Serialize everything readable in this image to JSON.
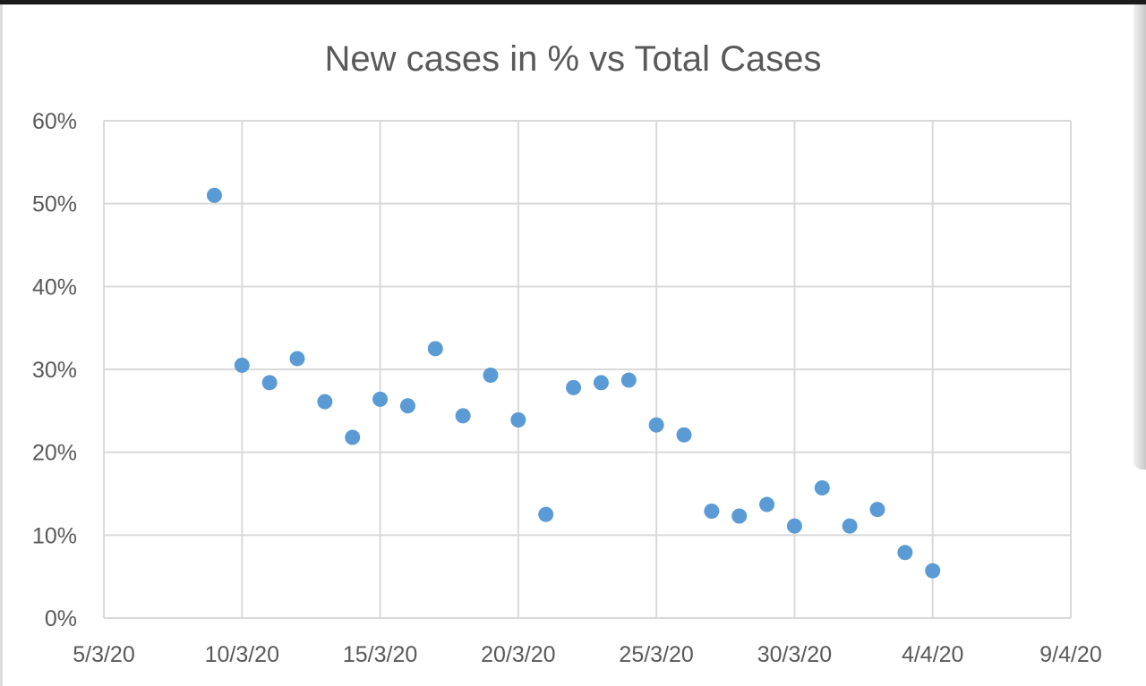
{
  "chart_data": {
    "type": "scatter",
    "title": "New cases in % vs Total Cases",
    "xlabel": "",
    "ylabel": "",
    "x_ticks": [
      "5/3/20",
      "10/3/20",
      "15/3/20",
      "20/3/20",
      "25/3/20",
      "30/3/20",
      "4/4/20",
      "9/4/20"
    ],
    "y_ticks": [
      "0%",
      "10%",
      "20%",
      "30%",
      "40%",
      "50%",
      "60%"
    ],
    "xlim": [
      "5/3/20",
      "9/4/20"
    ],
    "ylim": [
      0,
      60
    ],
    "grid": true,
    "legend": "none",
    "marker_color": "#5b9bd5",
    "series": [
      {
        "points": [
          {
            "x": "9/3/20",
            "y": 51.0
          },
          {
            "x": "10/3/20",
            "y": 30.5
          },
          {
            "x": "11/3/20",
            "y": 28.4
          },
          {
            "x": "12/3/20",
            "y": 31.3
          },
          {
            "x": "13/3/20",
            "y": 26.1
          },
          {
            "x": "14/3/20",
            "y": 21.8
          },
          {
            "x": "15/3/20",
            "y": 26.4
          },
          {
            "x": "16/3/20",
            "y": 25.6
          },
          {
            "x": "17/3/20",
            "y": 32.5
          },
          {
            "x": "18/3/20",
            "y": 24.4
          },
          {
            "x": "19/3/20",
            "y": 29.3
          },
          {
            "x": "20/3/20",
            "y": 23.9
          },
          {
            "x": "21/3/20",
            "y": 12.5
          },
          {
            "x": "22/3/20",
            "y": 27.8
          },
          {
            "x": "23/3/20",
            "y": 28.4
          },
          {
            "x": "24/3/20",
            "y": 28.7
          },
          {
            "x": "25/3/20",
            "y": 23.3
          },
          {
            "x": "26/3/20",
            "y": 22.1
          },
          {
            "x": "27/3/20",
            "y": 12.9
          },
          {
            "x": "28/3/20",
            "y": 12.3
          },
          {
            "x": "29/3/20",
            "y": 13.7
          },
          {
            "x": "30/3/20",
            "y": 11.1
          },
          {
            "x": "31/3/20",
            "y": 15.7
          },
          {
            "x": "1/4/20",
            "y": 11.1
          },
          {
            "x": "2/4/20",
            "y": 13.1
          },
          {
            "x": "3/4/20",
            "y": 7.9
          },
          {
            "x": "4/4/20",
            "y": 5.7
          }
        ]
      }
    ]
  }
}
